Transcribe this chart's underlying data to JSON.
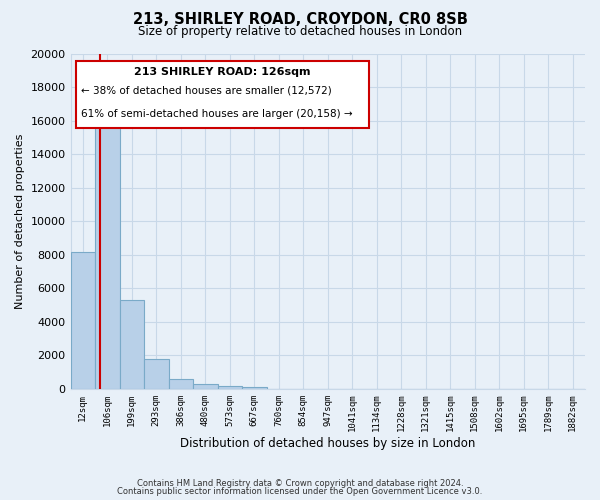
{
  "title": "213, SHIRLEY ROAD, CROYDON, CR0 8SB",
  "subtitle": "Size of property relative to detached houses in London",
  "xlabel": "Distribution of detached houses by size in London",
  "ylabel": "Number of detached properties",
  "bar_labels": [
    "12sqm",
    "106sqm",
    "199sqm",
    "293sqm",
    "386sqm",
    "480sqm",
    "573sqm",
    "667sqm",
    "760sqm",
    "854sqm",
    "947sqm",
    "1041sqm",
    "1134sqm",
    "1228sqm",
    "1321sqm",
    "1415sqm",
    "1508sqm",
    "1602sqm",
    "1695sqm",
    "1789sqm",
    "1882sqm"
  ],
  "bar_values": [
    8200,
    16600,
    5300,
    1800,
    600,
    280,
    150,
    100,
    0,
    0,
    0,
    0,
    0,
    0,
    0,
    0,
    0,
    0,
    0,
    0,
    0
  ],
  "bar_color": "#b8d0e8",
  "bar_edge_color": "#7aaac8",
  "property_line_color": "#cc0000",
  "annotation_box_color": "#ffffff",
  "annotation_box_edge": "#cc0000",
  "property_label": "213 SHIRLEY ROAD: 126sqm",
  "annotation_line1": "← 38% of detached houses are smaller (12,572)",
  "annotation_line2": "61% of semi-detached houses are larger (20,158) →",
  "ylim": [
    0,
    20000
  ],
  "yticks": [
    0,
    2000,
    4000,
    6000,
    8000,
    10000,
    12000,
    14000,
    16000,
    18000,
    20000
  ],
  "grid_color": "#c8d8e8",
  "background_color": "#e8f0f8",
  "footer_line1": "Contains HM Land Registry data © Crown copyright and database right 2024.",
  "footer_line2": "Contains public sector information licensed under the Open Government Licence v3.0."
}
